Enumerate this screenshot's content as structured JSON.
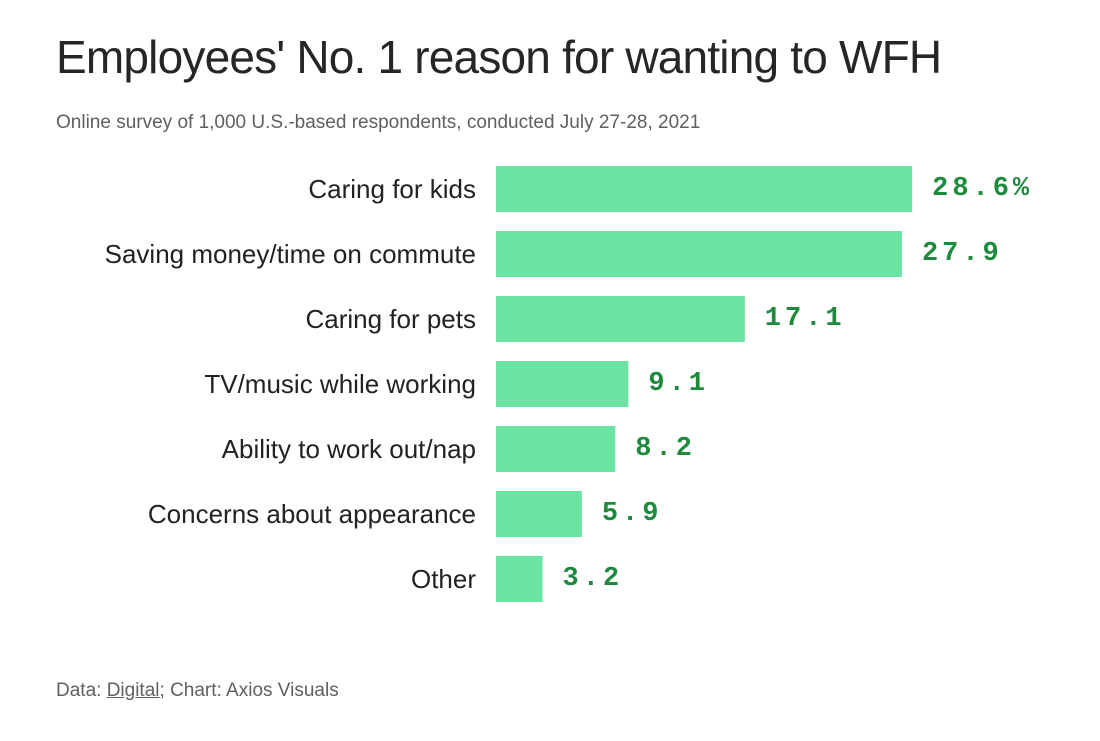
{
  "title": "Employees' No. 1 reason for wanting to WFH",
  "subtitle": "Online survey of 1,000 U.S.-based respondents, conducted July 27-28, 2021",
  "footer": {
    "data_prefix": "Data: ",
    "source_link": "Digital",
    "suffix": "; Chart: Axios Visuals"
  },
  "colors": {
    "bar": "#6ae3a3",
    "value_text": "#1e8a3c"
  },
  "chart_data": {
    "type": "bar",
    "orientation": "horizontal",
    "categories": [
      "Caring for kids",
      "Saving money/time on commute",
      "Caring for pets",
      "TV/music while working",
      "Ability to work out/nap",
      "Concerns about appearance",
      "Other"
    ],
    "values": [
      28.6,
      27.9,
      17.1,
      9.1,
      8.2,
      5.9,
      3.2
    ],
    "value_labels": [
      "28.6%",
      "27.9",
      "17.1",
      "9.1",
      "8.2",
      "5.9",
      "3.2"
    ],
    "grid": false,
    "legend": "none"
  }
}
